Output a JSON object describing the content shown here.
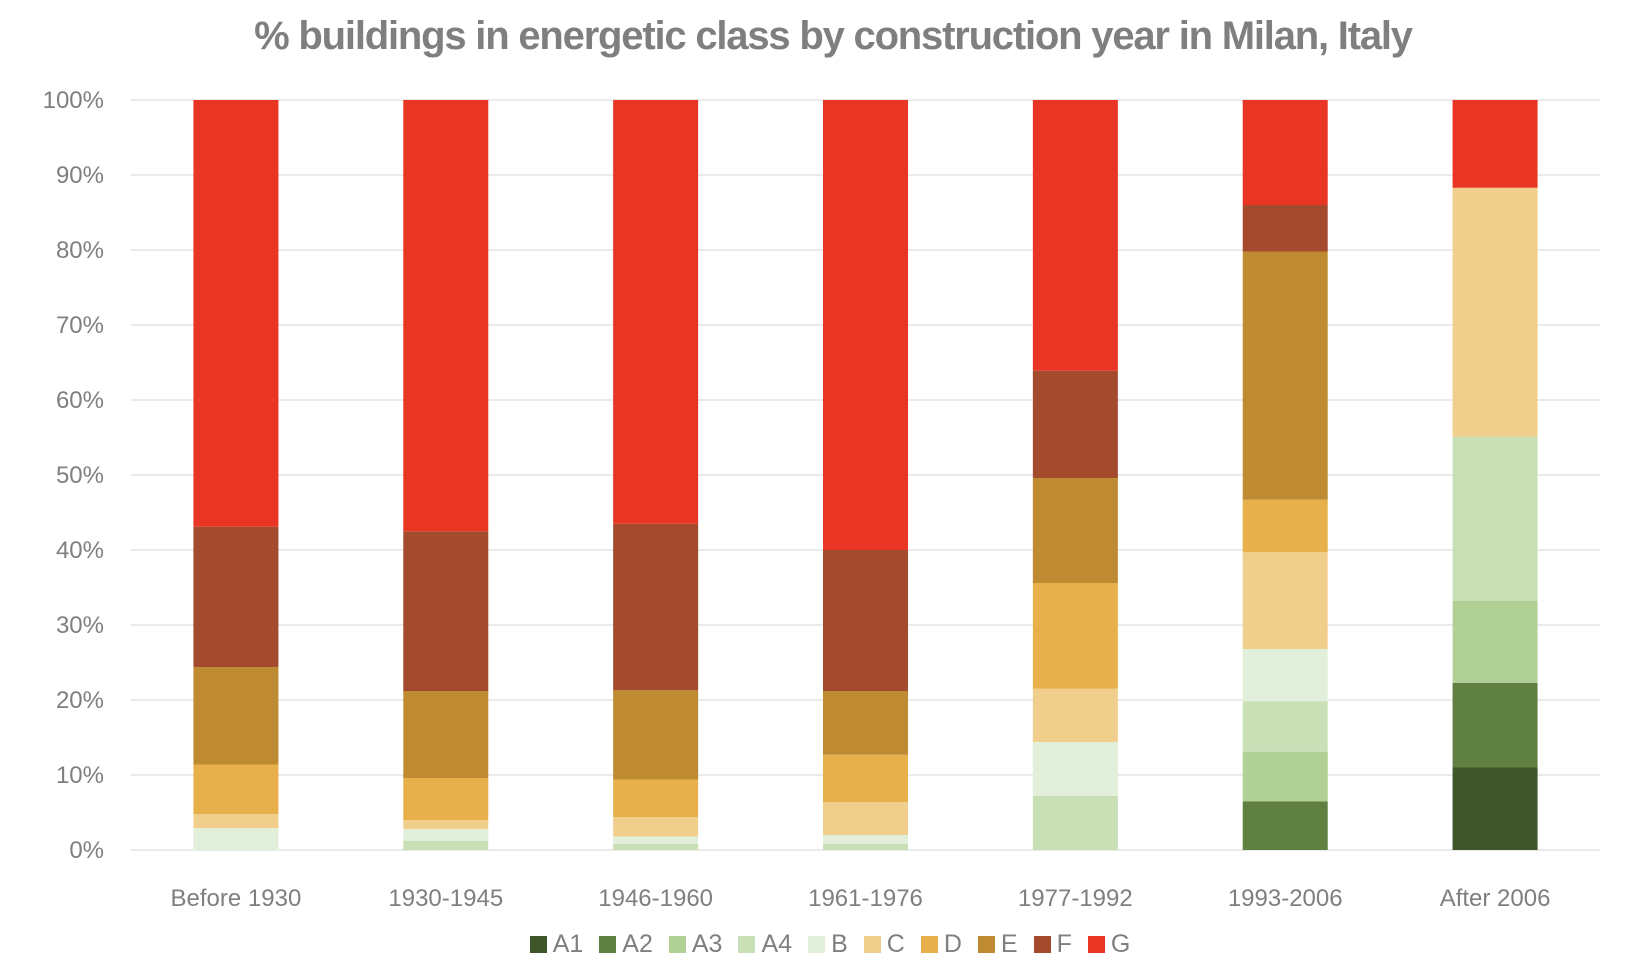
{
  "chart_data": {
    "type": "bar",
    "stacked": true,
    "normalized": true,
    "title": "% buildings in energetic class by construction year in Milan, Italy",
    "xlabel": "",
    "ylabel": "",
    "ylim": [
      0,
      100
    ],
    "yticks": [
      "0%",
      "10%",
      "20%",
      "30%",
      "40%",
      "50%",
      "60%",
      "70%",
      "80%",
      "90%",
      "100%"
    ],
    "grid": true,
    "legend_position": "bottom",
    "categories": [
      "Before 1930",
      "1930-1945",
      "1946-1960",
      "1961-1976",
      "1977-1992",
      "1993-2006",
      "After 2006"
    ],
    "series": [
      {
        "name": "A1",
        "color": "#3f562a",
        "values": [
          0,
          0,
          0,
          0,
          0,
          0,
          11.0
        ]
      },
      {
        "name": "A2",
        "color": "#5f8040",
        "values": [
          0,
          0,
          0,
          0,
          0,
          6.5,
          11.3
        ]
      },
      {
        "name": "A3",
        "color": "#b1d095",
        "values": [
          0,
          0,
          0,
          0,
          0,
          6.6,
          10.9
        ]
      },
      {
        "name": "A4",
        "color": "#c9dfb6",
        "values": [
          0,
          1.2,
          0.8,
          0.8,
          7.2,
          6.7,
          21.9
        ]
      },
      {
        "name": "B",
        "color": "#e2efda",
        "values": [
          2.9,
          1.6,
          1.0,
          1.2,
          7.2,
          7.0,
          0
        ]
      },
      {
        "name": "C",
        "color": "#f0cf8c",
        "values": [
          1.9,
          1.2,
          2.6,
          4.4,
          7.1,
          12.9,
          33.2
        ]
      },
      {
        "name": "D",
        "color": "#e8b04a",
        "values": [
          6.6,
          5.6,
          5.0,
          6.3,
          14.1,
          7.0,
          0
        ]
      },
      {
        "name": "E",
        "color": "#bf8b32",
        "values": [
          13.0,
          11.6,
          11.9,
          8.5,
          14.0,
          33.1,
          0
        ]
      },
      {
        "name": "F",
        "color": "#a44b2e",
        "values": [
          18.7,
          21.3,
          22.2,
          18.8,
          14.3,
          6.2,
          0
        ]
      },
      {
        "name": "G",
        "color": "#e93524",
        "values": [
          56.9,
          57.5,
          56.5,
          60.0,
          36.1,
          14.0,
          11.7
        ]
      }
    ]
  }
}
